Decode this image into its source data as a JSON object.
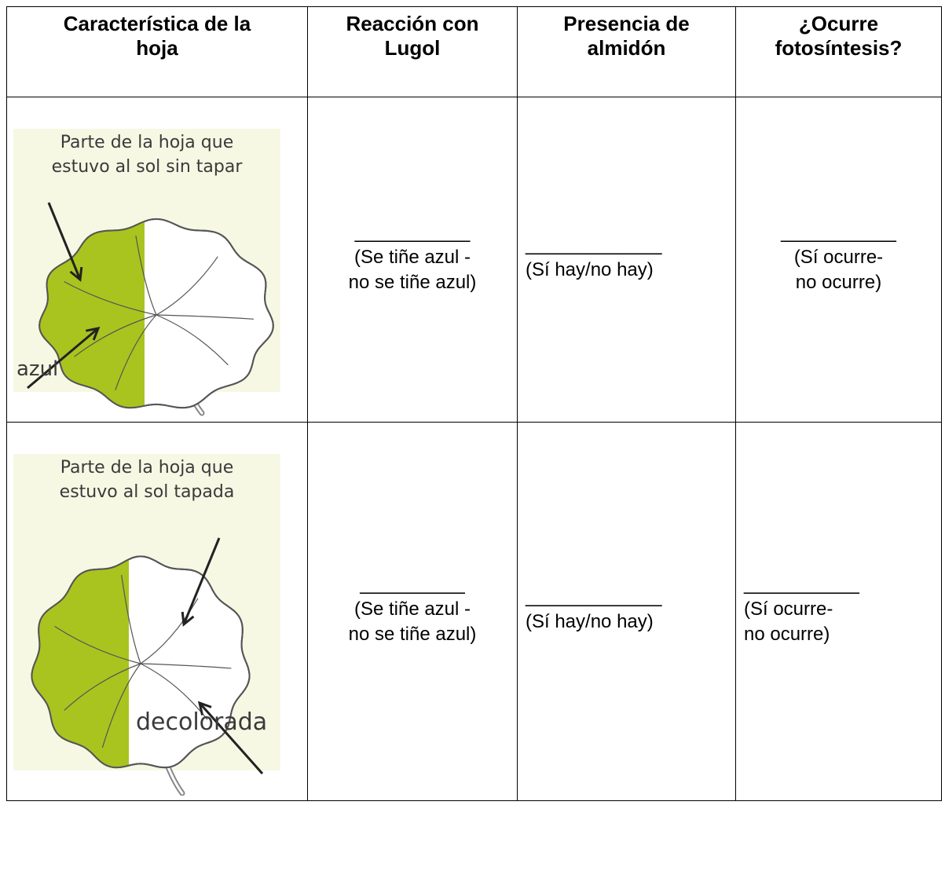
{
  "table": {
    "header": [
      "Característica de la\nhoja",
      "Reacción con\nLugol",
      "Presencia de\nalmidón",
      "¿Ocurre\nfotosíntesis?"
    ],
    "rows": [
      {
        "image": {
          "caption": "Parte de la hoja que\nestuvo al sol sin tapar",
          "label": "azul"
        },
        "cells": [
          {
            "blank": "___________",
            "hint": "(Se tiñe azul -\nno se tiñe azul)"
          },
          {
            "blank": "_____________",
            "hint": "(Sí hay/no hay)"
          },
          {
            "blank": "___________",
            "hint": "(Sí ocurre-\nno ocurre)"
          }
        ]
      },
      {
        "image": {
          "caption": "Parte de la hoja que\nestuvo al sol tapada",
          "label": "decolorada"
        },
        "cells": [
          {
            "blank": "__________",
            "hint": "(Se tiñe azul -\nno se tiñe azul)"
          },
          {
            "blank": "_____________",
            "hint": "(Sí hay/no hay)"
          },
          {
            "blank": "___________",
            "hint": "(Sí ocurre-\nno ocurre)"
          }
        ]
      }
    ]
  }
}
